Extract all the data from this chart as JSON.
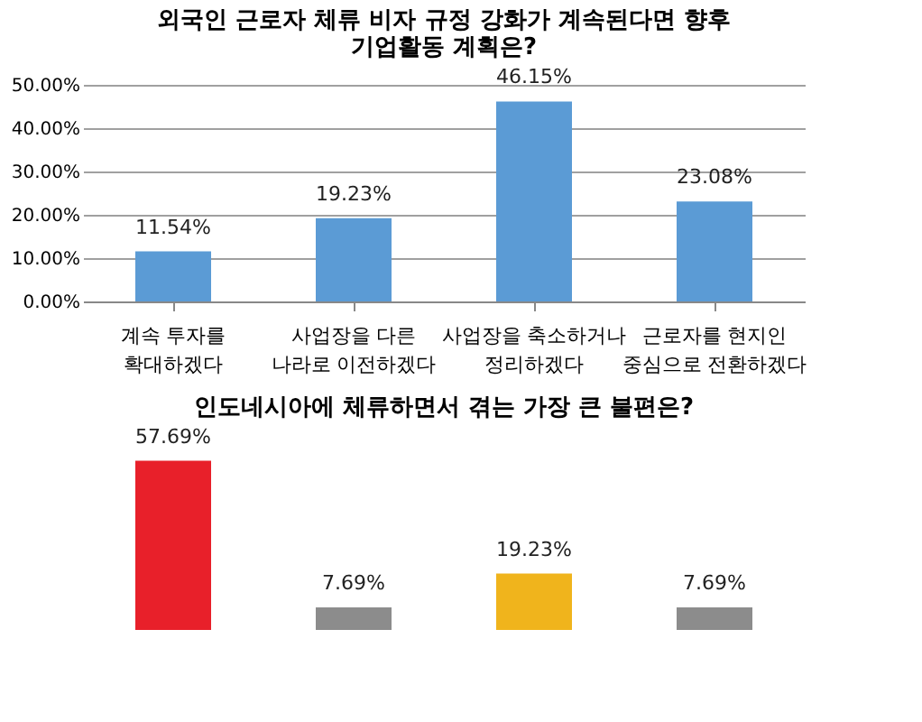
{
  "chart_data": [
    {
      "type": "bar",
      "title": [
        "외국인 근로자 체류 비자 규정 강화가 계속된다면 향후",
        "기업활동 계획은?"
      ],
      "categories": [
        "계속 투자를\n확대하겠다",
        "사업장을 다른\n나라로 이전하겠다",
        "사업장을 축소하거나\n정리하겠다",
        "근로자를 현지인\n중심으로 전환하겠다"
      ],
      "values": [
        11.54,
        19.23,
        46.15,
        23.08
      ],
      "value_labels": [
        "11.54%",
        "19.23%",
        "46.15%",
        "23.08%"
      ],
      "color": "#5b9bd5",
      "ylim": [
        0,
        50
      ],
      "yticks": [
        {
          "value": 0,
          "label": "0.00%"
        },
        {
          "value": 10,
          "label": "10.00%"
        },
        {
          "value": 20,
          "label": "20.00%"
        },
        {
          "value": 30,
          "label": "30.00%"
        },
        {
          "value": 40,
          "label": "40.00%"
        },
        {
          "value": 50,
          "label": "50.00%"
        }
      ],
      "grid": "y"
    },
    {
      "type": "bar",
      "title": "인도네시아에 체류하면서 겪는 가장 큰 불편은?",
      "categories": [
        null,
        null,
        null,
        null
      ],
      "values": [
        57.69,
        7.69,
        19.23,
        7.69
      ],
      "value_labels": [
        "57.69%",
        "7.69%",
        "19.23%",
        "7.69%"
      ],
      "colors": [
        "#e8202a",
        "#8c8c8c",
        "#f0b41c",
        "#8c8c8c"
      ],
      "tick_labels": false
    }
  ]
}
